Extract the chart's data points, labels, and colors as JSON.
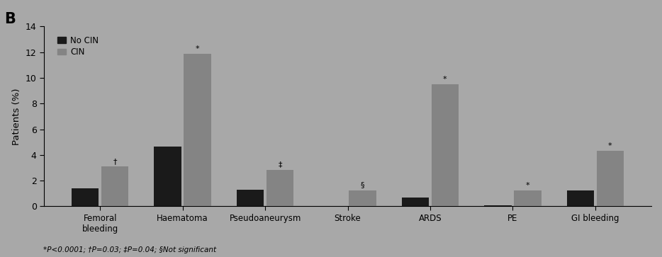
{
  "categories": [
    "Femoral\nbleeding",
    "Haematoma",
    "Pseudoaneurysm",
    "Stroke",
    "ARDS",
    "PE",
    "GI bleeding"
  ],
  "no_cin": [
    1.4,
    4.65,
    1.3,
    0.05,
    0.7,
    0.1,
    1.25
  ],
  "cin": [
    3.1,
    11.85,
    2.85,
    1.25,
    9.5,
    1.25,
    4.3
  ],
  "no_cin_color": "#1a1a1a",
  "cin_color": "#848484",
  "background_color": "#a8a8a8",
  "plot_bg_color": "#a8a8a8",
  "ylabel": "Patients (%)",
  "ylim": [
    0,
    14
  ],
  "yticks": [
    0,
    2,
    4,
    6,
    8,
    10,
    12,
    14
  ],
  "title_label": "B",
  "legend_labels": [
    "No CIN",
    "CIN"
  ],
  "footnote": "*P<0.0001; †P=0.03; ‡P=0.04; §Not significant",
  "annotation_cin_symbols": [
    "†",
    "*",
    "‡",
    "§",
    "*",
    "*",
    "*"
  ]
}
